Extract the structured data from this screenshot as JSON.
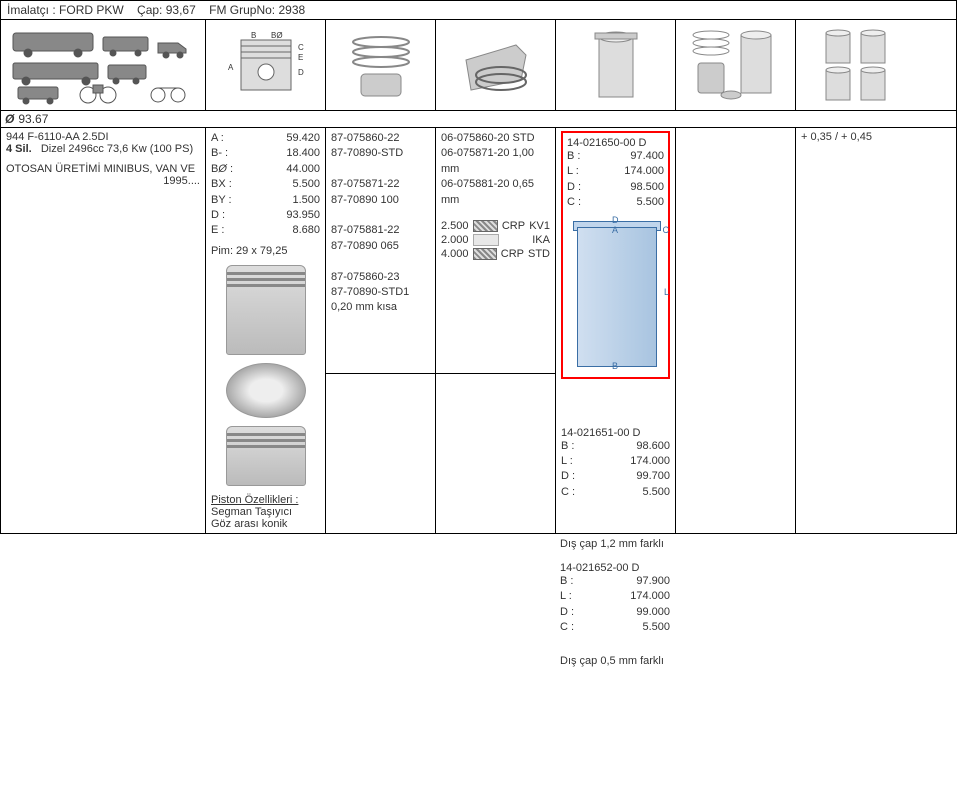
{
  "header": {
    "manufacturer_label": "İmalatçı :",
    "manufacturer": "FORD PKW",
    "diameter_label": "Çap:",
    "diameter": "93,67",
    "group_label": "FM GrupNo:",
    "group": "2938"
  },
  "diameter_row": "93.67",
  "engine": {
    "code": "944 F-6110-AA 2.5DI",
    "cylinders": "4 Sil.",
    "spec": "Dizel 2496cc 73,6 Kw (100 PS)",
    "application": "OTOSAN ÜRETİMİ MINIBUS, VAN VE",
    "year": "1995...."
  },
  "piston_dims": {
    "A": "59.420",
    "B_minus": "18.400",
    "B_dia": "44.000",
    "BX": "5.500",
    "BY": "1.500",
    "D": "93.950",
    "E": "8.680",
    "pin": "Pim: 29 x 79,25"
  },
  "piston_features": {
    "title": "Piston Özellikleri :",
    "line1": "Segman Taşıyıcı",
    "line2": "Göz arası konik"
  },
  "part_numbers_col3": [
    "87-075860-22",
    "87-70890-STD",
    "",
    "87-075871-22",
    "87-70890 100",
    "",
    "87-075881-22",
    "87-70890 065",
    "",
    "87-075860-23",
    "87-70890-STD1",
    "0,20 mm kısa"
  ],
  "part_numbers_col4": [
    "06-075860-20 STD",
    "06-075871-20 1,00 mm",
    "06-075881-20 0,65 mm"
  ],
  "rings": [
    {
      "size": "2.500",
      "type": "hatch",
      "label1": "CRP",
      "label2": "KV1"
    },
    {
      "size": "2.000",
      "type": "plain",
      "label1": "",
      "label2": "IKA"
    },
    {
      "size": "4.000",
      "type": "hatch",
      "label1": "CRP",
      "label2": "STD"
    }
  ],
  "liner1": {
    "part": "14-021650-00 D",
    "B": "97.400",
    "L": "174.000",
    "D": "98.500",
    "C": "5.500"
  },
  "liner2": {
    "part": "14-021651-00 D",
    "B": "98.600",
    "L": "174.000",
    "D": "99.700",
    "C": "5.500"
  },
  "liner3": {
    "note1": "Dış çap 1,2 mm farklı",
    "part": "14-021652-00 D",
    "B": "97.900",
    "L": "174.000",
    "D": "99.000",
    "C": "5.500",
    "note2": "Dış çap 0,5 mm farklı"
  },
  "col7_text": "+ 0,35 / + 0,45"
}
